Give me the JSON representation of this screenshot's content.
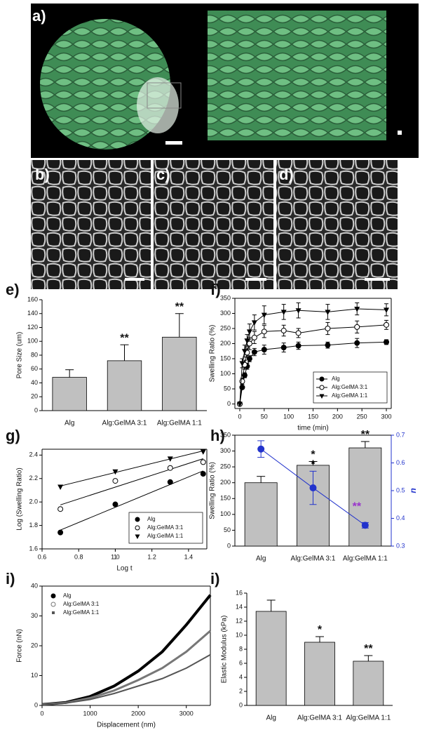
{
  "panels": [
    {
      "label": "a)"
    },
    {
      "label": "b)"
    },
    {
      "label": "c)"
    },
    {
      "label": "d)"
    }
  ],
  "chart_data": [
    {
      "type": "bar",
      "panel_label": "e)",
      "ylabel": "Pore Size (um)",
      "categories": [
        "Alg",
        "Alg:GelMA 3:1",
        "Alg:GelMA 1:1"
      ],
      "values": [
        48,
        72,
        106
      ],
      "errors": [
        11,
        23,
        34
      ],
      "annotations": [
        null,
        "**",
        "**"
      ],
      "color": "#c0c0c0",
      "ylim": [
        0,
        160
      ],
      "yticks": [
        0,
        20,
        40,
        60,
        80,
        100,
        120,
        140,
        160
      ]
    },
    {
      "type": "line",
      "panel_label": "f)",
      "xlabel": "time (min)",
      "ylabel": "Swelling Ratio (%)",
      "x": [
        0,
        5,
        10,
        15,
        20,
        30,
        50,
        90,
        120,
        180,
        240,
        300
      ],
      "series": [
        {
          "name": "Alg",
          "color": "#000000",
          "marker": "circle-filled",
          "values": [
            0,
            55,
            95,
            125,
            150,
            172,
            180,
            187,
            193,
            195,
            202,
            205
          ],
          "errors": [
            0,
            5,
            8,
            10,
            10,
            12,
            15,
            15,
            12,
            10,
            15,
            8
          ]
        },
        {
          "name": "Alg:GelMA 3:1",
          "color": "#000000",
          "marker": "circle-open",
          "values": [
            0,
            75,
            130,
            170,
            200,
            220,
            240,
            243,
            235,
            250,
            255,
            262
          ],
          "errors": [
            0,
            10,
            15,
            15,
            20,
            20,
            20,
            18,
            15,
            20,
            20,
            15
          ]
        },
        {
          "name": "Alg:GelMA 1:1",
          "color": "#000000",
          "marker": "triangle-down",
          "values": [
            0,
            135,
            175,
            210,
            240,
            270,
            295,
            305,
            310,
            305,
            315,
            312
          ],
          "errors": [
            0,
            15,
            20,
            20,
            25,
            25,
            30,
            25,
            25,
            25,
            20,
            20
          ]
        }
      ],
      "xlim": [
        -10,
        310
      ],
      "xticks": [
        0,
        50,
        100,
        150,
        200,
        250,
        300
      ],
      "ylim": [
        -15,
        350
      ],
      "yticks": [
        0,
        50,
        100,
        150,
        200,
        250,
        300,
        350
      ],
      "legend": "lower right"
    },
    {
      "type": "scatter",
      "panel_label": "g)",
      "xlabel": "Log t",
      "ylabel": "Log (Swelling Ratio)",
      "fit": "linear",
      "x": [
        0.7,
        1.0,
        1.3,
        1.48
      ],
      "series": [
        {
          "name": "Alg",
          "color": "#000000",
          "marker": "circle-filled",
          "values": [
            1.74,
            1.98,
            2.17,
            2.24
          ]
        },
        {
          "name": "Alg:GelMA 3:1",
          "color": "#000000",
          "marker": "circle-open",
          "values": [
            1.94,
            2.18,
            2.29,
            2.34
          ]
        },
        {
          "name": "Alg:GelMA 1:1",
          "color": "#000000",
          "marker": "triangle-down",
          "values": [
            2.13,
            2.26,
            2.37,
            2.43
          ]
        }
      ],
      "xlim": [
        0.6,
        1.5
      ],
      "xticks": [
        0.6,
        0.8,
        1,
        {
          "value": 1,
          "label": "1.0"
        },
        1.2,
        1.4
      ],
      "ylim": [
        1.6,
        2.45
      ],
      "yticks": [
        1.6,
        1.8,
        {
          "value": 2,
          "label": "2.0"
        },
        2.2,
        2.4
      ],
      "legend": "lower right"
    },
    {
      "type": "bar",
      "panel_label": "h)",
      "ylabel": "Swelling Ratio (%)",
      "categories": [
        "Alg",
        "Alg:GelMA 3:1",
        "Alg:GelMA 1:1"
      ],
      "values": [
        200,
        255,
        310
      ],
      "errors": [
        20,
        12,
        20
      ],
      "annotations": [
        null,
        "*",
        "**"
      ],
      "color": "#c0c0c0",
      "ylim": [
        0,
        350
      ],
      "yticks": [
        0,
        50,
        100,
        150,
        200,
        250,
        300,
        350
      ],
      "y2label": "n",
      "y2lim": [
        0.3,
        0.7
      ],
      "y2ticks": [
        0.3,
        0.4,
        0.5,
        0.6,
        0.7
      ],
      "series": [
        {
          "axis": "y2",
          "color": "#2233cc",
          "values": [
            0.65,
            0.51,
            0.375
          ],
          "errors": [
            0.03,
            0.06,
            0.01
          ],
          "annotations": [
            null,
            "*",
            "**"
          ],
          "annotation_colors": [
            null,
            "#000000",
            "#9933cc"
          ]
        }
      ]
    },
    {
      "type": "line",
      "panel_label": "i)",
      "xlabel": "Displacement (nm)",
      "ylabel": "Force (nN)",
      "x": [
        0,
        500,
        1000,
        1500,
        2000,
        2500,
        3000,
        3500
      ],
      "series": [
        {
          "name": "Alg",
          "color": "#000000",
          "marker": "circle-filled",
          "line_width": 4,
          "values": [
            0.3,
            1,
            3,
            6.5,
            11.5,
            18,
            27,
            37
          ]
        },
        {
          "name": "Alg:GelMA 3:1",
          "color": "#777777",
          "marker": "circle-open",
          "line_width": 3,
          "values": [
            0.3,
            0.9,
            2.5,
            5,
            8.5,
            12.5,
            18,
            25
          ]
        },
        {
          "name": "Alg:GelMA 1:1",
          "color": "#555555",
          "marker": "square",
          "line_width": 2,
          "values": [
            0.3,
            0.8,
            2,
            4,
            6.5,
            9,
            12.5,
            17
          ]
        }
      ],
      "xlim": [
        0,
        3500
      ],
      "xticks": [
        0,
        1000,
        2000,
        3000
      ],
      "ylim": [
        0,
        40
      ],
      "yticks": [
        0,
        10,
        20,
        30,
        40
      ],
      "legend": "upper left"
    },
    {
      "type": "bar",
      "panel_label": "i)",
      "ylabel": "Elastic Modulus (kPa)",
      "categories": [
        "Alg",
        "Alg:GelMA 3:1",
        "Alg:GelMA 1:1"
      ],
      "values": [
        13.4,
        9.0,
        6.3
      ],
      "errors": [
        1.6,
        0.8,
        0.8
      ],
      "annotations": [
        null,
        "*",
        "**"
      ],
      "color": "#c0c0c0",
      "ylim": [
        0,
        16
      ],
      "yticks": [
        0,
        2,
        4,
        6,
        8,
        10,
        12,
        14,
        16
      ]
    }
  ]
}
